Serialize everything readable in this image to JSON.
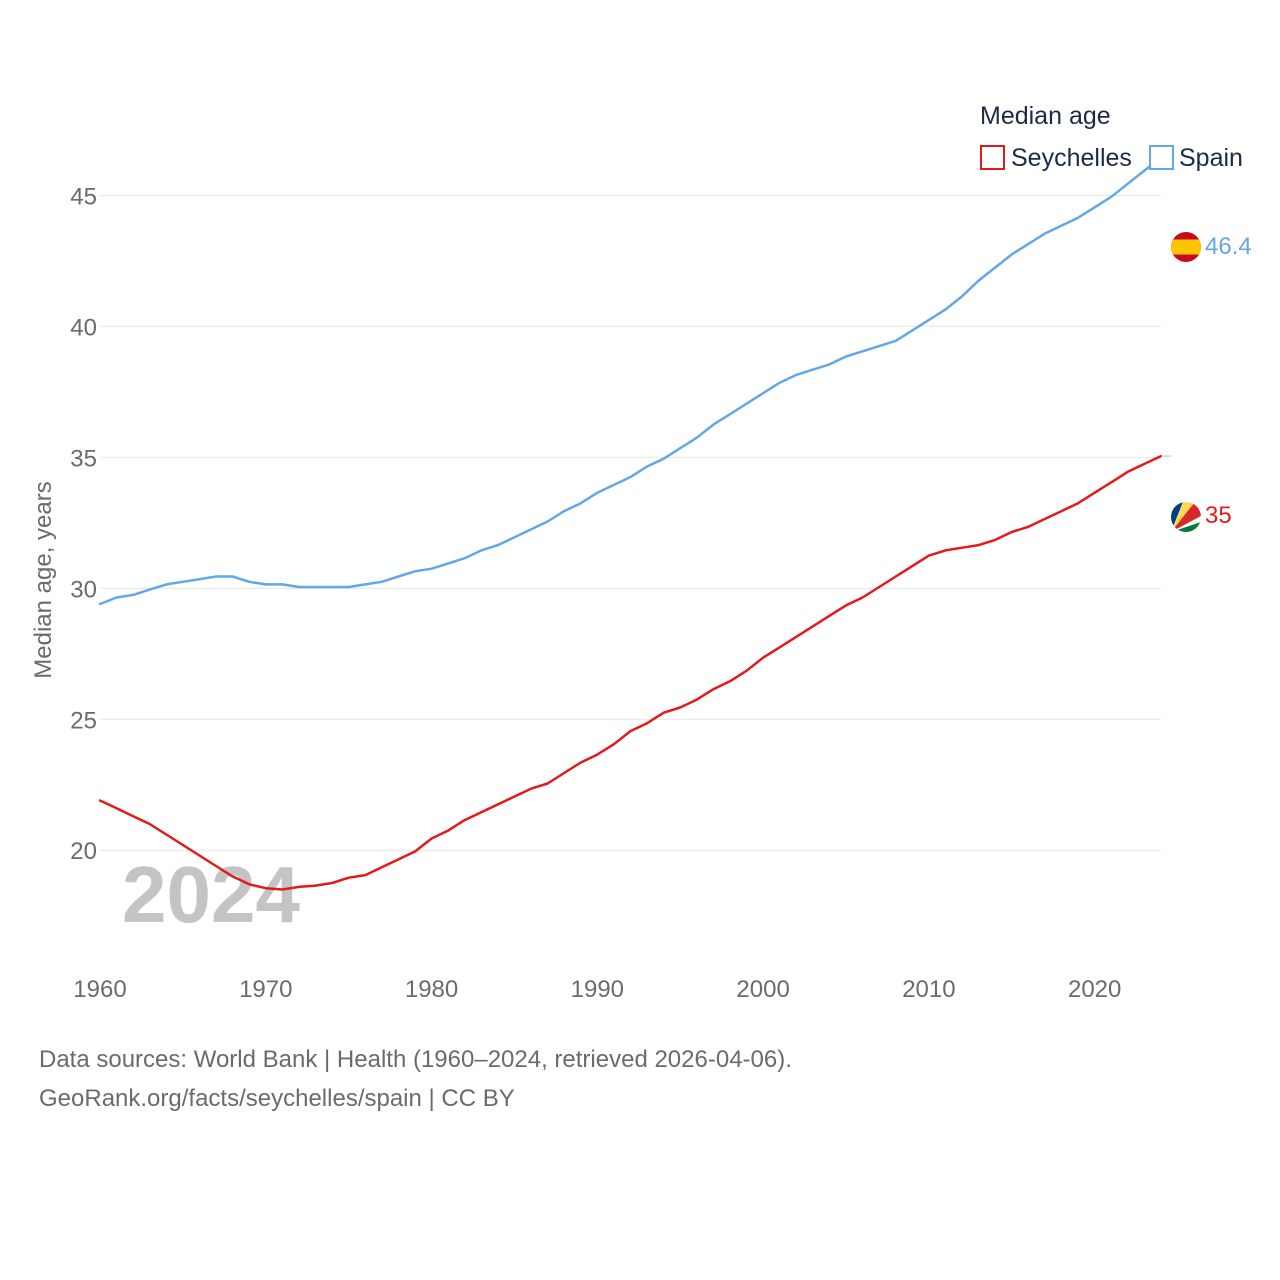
{
  "chart_data": {
    "type": "line",
    "title": "Median age",
    "ylabel": "Median age, years",
    "xlabel": "",
    "xlim": [
      1960,
      2024
    ],
    "ylim": [
      16,
      47.5
    ],
    "xticks": [
      1960,
      1970,
      1980,
      1990,
      2000,
      2010,
      2020
    ],
    "yticks": [
      20,
      25,
      30,
      35,
      40,
      45
    ],
    "grid": true,
    "legend_position": "top-right",
    "current_year": "2024",
    "x": [
      1960,
      1961,
      1962,
      1963,
      1964,
      1965,
      1966,
      1967,
      1968,
      1969,
      1970,
      1971,
      1972,
      1973,
      1974,
      1975,
      1976,
      1977,
      1978,
      1979,
      1980,
      1981,
      1982,
      1983,
      1984,
      1985,
      1986,
      1987,
      1988,
      1989,
      1990,
      1991,
      1992,
      1993,
      1994,
      1995,
      1996,
      1997,
      1998,
      1999,
      2000,
      2001,
      2002,
      2003,
      2004,
      2005,
      2006,
      2007,
      2008,
      2009,
      2010,
      2011,
      2012,
      2013,
      2014,
      2015,
      2016,
      2017,
      2018,
      2019,
      2020,
      2021,
      2022,
      2023,
      2024
    ],
    "series": [
      {
        "name": "Seychelles",
        "color": "#e31a1c",
        "end_label": "35",
        "flag": "seychelles",
        "values": [
          21.9,
          21.6,
          21.3,
          21.0,
          20.6,
          20.2,
          19.8,
          19.4,
          19.0,
          18.7,
          18.55,
          18.5,
          18.6,
          18.65,
          18.75,
          18.95,
          19.05,
          19.35,
          19.65,
          19.95,
          20.45,
          20.75,
          21.15,
          21.45,
          21.75,
          22.05,
          22.35,
          22.55,
          22.95,
          23.35,
          23.65,
          24.05,
          24.55,
          24.85,
          25.25,
          25.45,
          25.75,
          26.15,
          26.45,
          26.85,
          27.35,
          27.75,
          28.15,
          28.55,
          28.95,
          29.35,
          29.65,
          30.05,
          30.45,
          30.85,
          31.25,
          31.45,
          31.55,
          31.65,
          31.85,
          32.15,
          32.35,
          32.65,
          32.95,
          33.25,
          33.65,
          34.05,
          34.45,
          34.75,
          35.05
        ]
      },
      {
        "name": "Spain",
        "color": "#64a7e6",
        "end_label": "46.4",
        "flag": "spain",
        "values": [
          29.4,
          29.65,
          29.75,
          29.95,
          30.15,
          30.25,
          30.35,
          30.45,
          30.45,
          30.25,
          30.15,
          30.15,
          30.05,
          30.05,
          30.05,
          30.05,
          30.15,
          30.25,
          30.45,
          30.65,
          30.75,
          30.95,
          31.15,
          31.45,
          31.65,
          31.95,
          32.25,
          32.55,
          32.95,
          33.25,
          33.65,
          33.95,
          34.25,
          34.65,
          34.95,
          35.35,
          35.75,
          36.25,
          36.65,
          37.05,
          37.45,
          37.85,
          38.15,
          38.35,
          38.55,
          38.85,
          39.05,
          39.25,
          39.45,
          39.85,
          40.25,
          40.65,
          41.15,
          41.75,
          42.25,
          42.75,
          43.15,
          43.55,
          43.85,
          44.15,
          44.55,
          44.95,
          45.45,
          45.95,
          46.45
        ]
      }
    ]
  },
  "footer": {
    "line1": "Data sources: World Bank | Health (1960–2024, retrieved 2026-04-06).",
    "line2": "GeoRank.org/facts/seychelles/spain | CC BY"
  }
}
